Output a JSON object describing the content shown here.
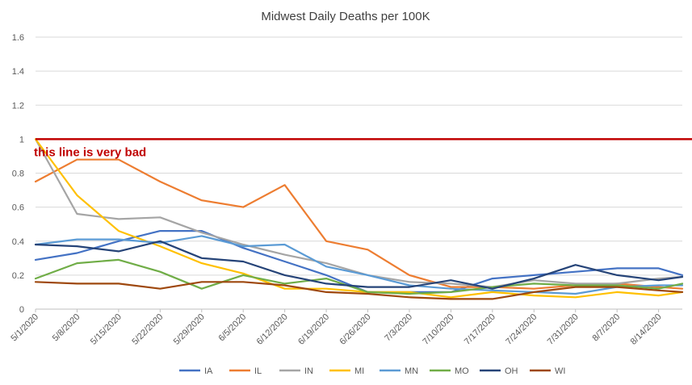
{
  "chart_data": {
    "type": "line",
    "title": "Midwest Daily Deaths per 100K",
    "xlabel": "",
    "ylabel": "",
    "ylim": [
      0,
      1.6
    ],
    "yticks": [
      "0",
      "0.2",
      "0.4",
      "0.6",
      "0.8",
      "1",
      "1.2",
      "1.4",
      "1.6"
    ],
    "x_start": "5/1/2020",
    "x_end": "8/18/2020",
    "xticks": [
      "5/1/2020",
      "5/8/2020",
      "5/15/2020",
      "5/22/2020",
      "5/29/2020",
      "6/5/2020",
      "6/12/2020",
      "6/19/2020",
      "6/26/2020",
      "7/3/2020",
      "7/10/2020",
      "7/17/2020",
      "7/24/2020",
      "7/31/2020",
      "8/7/2020",
      "8/14/2020"
    ],
    "grid": true,
    "legend_position": "bottom",
    "threshold": {
      "value": 1,
      "color": "#c00000",
      "label": "this line is very bad"
    },
    "x": [
      "5/1/2020",
      "5/8/2020",
      "5/15/2020",
      "5/22/2020",
      "5/29/2020",
      "6/5/2020",
      "6/12/2020",
      "6/19/2020",
      "6/26/2020",
      "7/3/2020",
      "7/10/2020",
      "7/17/2020",
      "7/24/2020",
      "7/31/2020",
      "8/7/2020",
      "8/14/2020",
      "8/18/2020"
    ],
    "series": [
      {
        "name": "IA",
        "color": "#4472c4",
        "values": [
          0.29,
          0.33,
          0.4,
          0.46,
          0.46,
          0.36,
          0.28,
          0.2,
          0.1,
          0.1,
          0.1,
          0.18,
          0.2,
          0.22,
          0.24,
          0.24,
          0.2
        ]
      },
      {
        "name": "IL",
        "color": "#ed7d31",
        "values": [
          0.75,
          0.88,
          0.88,
          0.75,
          0.64,
          0.6,
          0.73,
          0.4,
          0.35,
          0.2,
          0.13,
          0.13,
          0.12,
          0.14,
          0.15,
          0.13,
          0.12
        ]
      },
      {
        "name": "IN",
        "color": "#a5a5a5",
        "values": [
          1.0,
          0.56,
          0.53,
          0.54,
          0.45,
          0.38,
          0.32,
          0.27,
          0.2,
          0.16,
          0.15,
          0.13,
          0.17,
          0.15,
          0.15,
          0.18,
          0.19
        ]
      },
      {
        "name": "MI",
        "color": "#ffc000",
        "values": [
          1.0,
          0.67,
          0.46,
          0.37,
          0.27,
          0.21,
          0.12,
          0.12,
          0.1,
          0.1,
          0.07,
          0.1,
          0.08,
          0.07,
          0.1,
          0.08,
          0.1
        ]
      },
      {
        "name": "MN",
        "color": "#5b9bd5",
        "values": [
          0.38,
          0.41,
          0.41,
          0.39,
          0.43,
          0.37,
          0.38,
          0.25,
          0.2,
          0.14,
          0.12,
          0.11,
          0.1,
          0.09,
          0.13,
          0.14,
          0.14
        ]
      },
      {
        "name": "MO",
        "color": "#70ad47",
        "values": [
          0.18,
          0.27,
          0.29,
          0.22,
          0.12,
          0.2,
          0.15,
          0.18,
          0.1,
          0.09,
          0.1,
          0.13,
          0.15,
          0.14,
          0.14,
          0.12,
          0.15
        ]
      },
      {
        "name": "OH",
        "color": "#264478",
        "values": [
          0.38,
          0.37,
          0.34,
          0.4,
          0.3,
          0.28,
          0.2,
          0.15,
          0.13,
          0.13,
          0.17,
          0.12,
          0.18,
          0.26,
          0.2,
          0.17,
          0.19
        ]
      },
      {
        "name": "WI",
        "color": "#9e480e",
        "values": [
          0.16,
          0.15,
          0.15,
          0.12,
          0.16,
          0.16,
          0.14,
          0.1,
          0.09,
          0.07,
          0.06,
          0.06,
          0.1,
          0.13,
          0.13,
          0.11,
          0.1
        ]
      }
    ]
  }
}
